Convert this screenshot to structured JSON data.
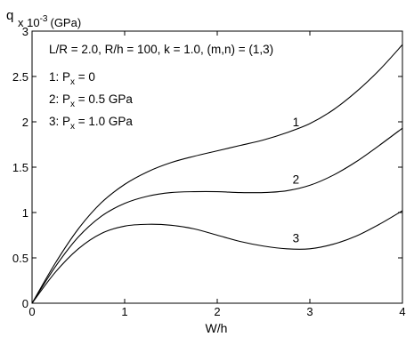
{
  "chart_data": {
    "type": "line",
    "xlabel": "W/h",
    "ylabel": {
      "symbol": "q",
      "multiplier_base": "x 10",
      "multiplier_exponent": "-3",
      "unit": "(GPa)"
    },
    "xlim": [
      0,
      4
    ],
    "ylim": [
      0,
      3
    ],
    "x_ticks": [
      "0",
      "1",
      "2",
      "3",
      "4"
    ],
    "y_ticks": [
      "0",
      "0.5",
      "1",
      "1.5",
      "2",
      "2.5",
      "3"
    ],
    "grid": false,
    "parameters_text": "L/R = 2.0, R/h = 100, k = 1.0, (m,n) = (1,3)",
    "legend_placement": "top-left",
    "legend": [
      {
        "prefix": "1: P",
        "sub": "x",
        "suffix": " = 0"
      },
      {
        "prefix": "2: P",
        "sub": "x",
        "suffix": " = 0.5 GPa"
      },
      {
        "prefix": "3: P",
        "sub": "x",
        "suffix": " = 1.0 GPa"
      }
    ],
    "series": [
      {
        "label": "1",
        "label_at": [
          2.85,
          1.95
        ],
        "x": [
          0,
          0.25,
          0.5,
          0.75,
          1.0,
          1.25,
          1.5,
          1.75,
          2.0,
          2.25,
          2.5,
          2.75,
          3.0,
          3.25,
          3.5,
          3.75,
          4.0
        ],
        "y": [
          0,
          0.44,
          0.82,
          1.11,
          1.31,
          1.45,
          1.55,
          1.62,
          1.68,
          1.74,
          1.8,
          1.88,
          1.98,
          2.13,
          2.33,
          2.57,
          2.85
        ]
      },
      {
        "label": "2",
        "label_at": [
          2.85,
          1.32
        ],
        "x": [
          0,
          0.25,
          0.5,
          0.75,
          1.0,
          1.25,
          1.5,
          1.75,
          2.0,
          2.25,
          2.5,
          2.75,
          3.0,
          3.25,
          3.5,
          3.75,
          4.0
        ],
        "y": [
          0,
          0.4,
          0.73,
          0.96,
          1.1,
          1.18,
          1.22,
          1.23,
          1.23,
          1.22,
          1.22,
          1.24,
          1.3,
          1.41,
          1.56,
          1.74,
          1.93
        ]
      },
      {
        "label": "3",
        "label_at": [
          2.85,
          0.67
        ],
        "x": [
          0,
          0.25,
          0.5,
          0.75,
          1.0,
          1.25,
          1.5,
          1.75,
          2.0,
          2.25,
          2.5,
          2.75,
          3.0,
          3.25,
          3.5,
          3.75,
          4.0
        ],
        "y": [
          0,
          0.34,
          0.6,
          0.77,
          0.85,
          0.87,
          0.86,
          0.82,
          0.75,
          0.68,
          0.63,
          0.6,
          0.6,
          0.65,
          0.74,
          0.87,
          1.02
        ]
      }
    ]
  }
}
